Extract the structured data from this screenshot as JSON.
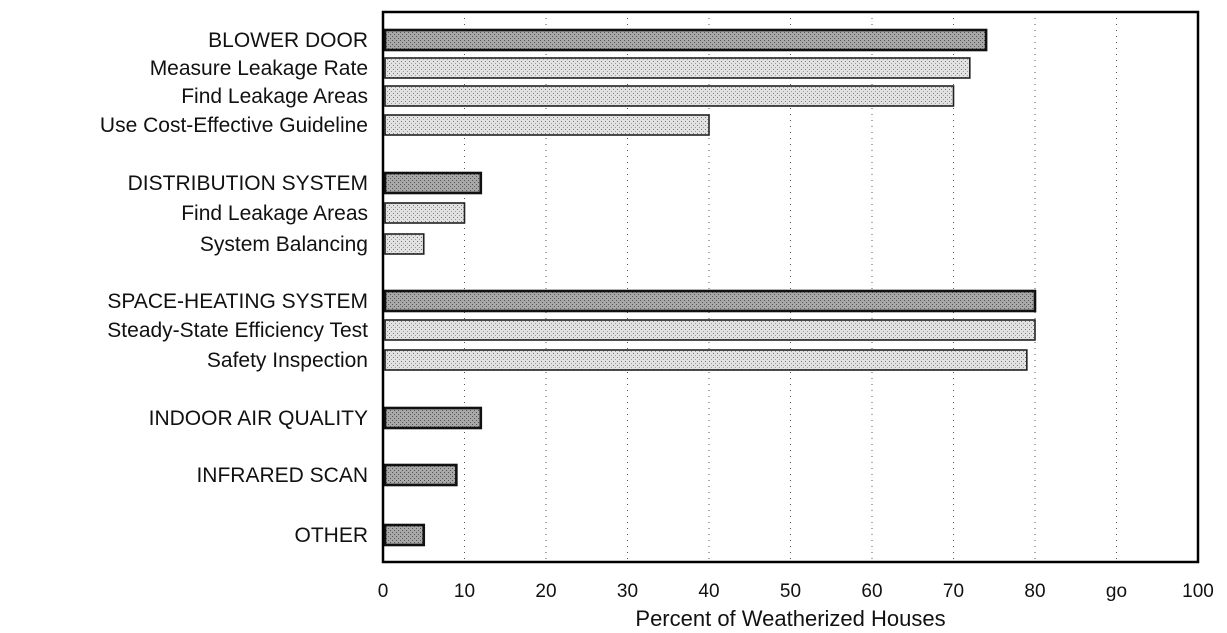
{
  "chart_data": {
    "type": "bar",
    "orientation": "horizontal",
    "title": "",
    "xlabel": "Percent of Weatherized Houses",
    "ylabel": "",
    "xlim": [
      0,
      100
    ],
    "x_ticks": [
      {
        "value": 0,
        "label": "0"
      },
      {
        "value": 10,
        "label": "10"
      },
      {
        "value": 20,
        "label": "20"
      },
      {
        "value": 30,
        "label": "30"
      },
      {
        "value": 40,
        "label": "40"
      },
      {
        "value": 50,
        "label": "50"
      },
      {
        "value": 60,
        "label": "60"
      },
      {
        "value": 70,
        "label": "70"
      },
      {
        "value": 80,
        "label": "80"
      },
      {
        "value": 90,
        "label": "go"
      },
      {
        "value": 100,
        "label": "100"
      }
    ],
    "grid": true,
    "legend": "none",
    "colors": {
      "category_bar_fill": "#9a9a9a",
      "sub_bar_fill": "#d2d2d2",
      "bar_stroke": "#222222",
      "frame": "#000000"
    },
    "items": [
      {
        "label": "BLOWER DOOR",
        "value": 74,
        "level": "category"
      },
      {
        "label": "Measure Leakage Rate",
        "value": 72,
        "level": "sub"
      },
      {
        "label": "Find Leakage Areas",
        "value": 70,
        "level": "sub"
      },
      {
        "label": "Use Cost-Effective Guideline",
        "value": 40,
        "level": "sub"
      },
      {
        "label": "DISTRIBUTION SYSTEM",
        "value": 12,
        "level": "category"
      },
      {
        "label": "Find Leakage Areas",
        "value": 10,
        "level": "sub"
      },
      {
        "label": "System Balancing",
        "value": 5,
        "level": "sub"
      },
      {
        "label": "SPACE-HEATING SYSTEM",
        "value": 80,
        "level": "category"
      },
      {
        "label": "Steady-State Efficiency Test",
        "value": 80,
        "level": "sub"
      },
      {
        "label": "Safety Inspection",
        "value": 79,
        "level": "sub"
      },
      {
        "label": "INDOOR AIR QUALITY",
        "value": 12,
        "level": "category"
      },
      {
        "label": "INFRARED SCAN",
        "value": 9,
        "level": "category"
      },
      {
        "label": "OTHER",
        "value": 5,
        "level": "category"
      }
    ]
  }
}
